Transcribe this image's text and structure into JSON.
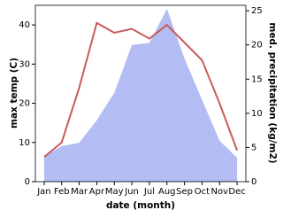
{
  "chart_data": {
    "type": "line-area",
    "categories": [
      "Jan",
      "Feb",
      "Mar",
      "Apr",
      "May",
      "Jun",
      "Jul",
      "Aug",
      "Sep",
      "Oct",
      "Nov",
      "Dec"
    ],
    "series": [
      {
        "color": "#b3bdf4",
        "axis": "y2",
        "kind": "area",
        "values": [
          3.7,
          5.2,
          5.7,
          9,
          13,
          20,
          20.3,
          25.3,
          18,
          12,
          6,
          3.5
        ]
      },
      {
        "color": "#c85a5a",
        "axis": "y",
        "kind": "line",
        "values": [
          6.3,
          10,
          24,
          40.5,
          38,
          39,
          36.5,
          40,
          35.5,
          31,
          20,
          8
        ]
      }
    ],
    "ylabel": "max temp (C)",
    "y2label": "med. precipitation (kg/m2)",
    "xlabel": "date (month)",
    "ylim": [
      0,
      45
    ],
    "yticks": [
      0,
      10,
      20,
      30,
      40
    ],
    "y2lim": [
      0,
      25.8
    ],
    "y2ticks": [
      0,
      5,
      10,
      15,
      20,
      25
    ]
  }
}
